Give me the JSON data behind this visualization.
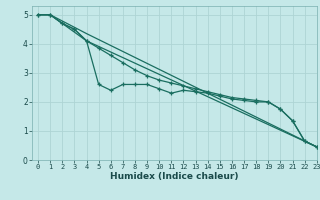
{
  "title": "",
  "xlabel": "Humidex (Indice chaleur)",
  "xlim": [
    -0.5,
    23
  ],
  "ylim": [
    0,
    5.3
  ],
  "bg_color": "#c5e8e8",
  "grid_color": "#aed4d4",
  "line_color": "#1a6e60",
  "x_ticks": [
    0,
    1,
    2,
    3,
    4,
    5,
    6,
    7,
    8,
    9,
    10,
    11,
    12,
    13,
    14,
    15,
    16,
    17,
    18,
    19,
    20,
    21,
    22,
    23
  ],
  "y_ticks": [
    0,
    1,
    2,
    3,
    4,
    5
  ],
  "line1_x": [
    0,
    1,
    2,
    3,
    4,
    5,
    6,
    7,
    8,
    9,
    10,
    11,
    12,
    13,
    14,
    15,
    16,
    17,
    18,
    19,
    20,
    21,
    22,
    23
  ],
  "line1_y": [
    5.0,
    5.0,
    4.7,
    4.5,
    4.1,
    2.6,
    2.4,
    2.6,
    2.6,
    2.6,
    2.45,
    2.3,
    2.4,
    2.35,
    2.3,
    2.2,
    2.1,
    2.05,
    2.0,
    2.0,
    1.75,
    1.35,
    0.65,
    0.45
  ],
  "line2_x": [
    0,
    1,
    2,
    3,
    4,
    5,
    6,
    7,
    8,
    9,
    10,
    11,
    12,
    13,
    14,
    15,
    16,
    17,
    18,
    19,
    20,
    21,
    22,
    23
  ],
  "line2_y": [
    5.0,
    5.0,
    4.7,
    4.5,
    4.1,
    3.85,
    3.6,
    3.35,
    3.1,
    2.9,
    2.75,
    2.65,
    2.55,
    2.45,
    2.35,
    2.25,
    2.15,
    2.1,
    2.05,
    2.0,
    1.75,
    1.35,
    0.65,
    0.45
  ],
  "line3_x": [
    0,
    1,
    4,
    23
  ],
  "line3_y": [
    5.0,
    5.0,
    4.1,
    0.45
  ],
  "line4_x": [
    0,
    1,
    4,
    23
  ],
  "line4_y": [
    5.0,
    5.0,
    4.35,
    0.45
  ],
  "xlabel_fontsize": 6.5,
  "tick_fontsize": 5.0
}
